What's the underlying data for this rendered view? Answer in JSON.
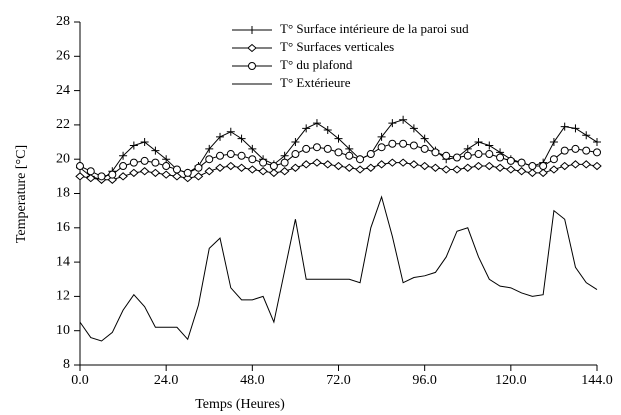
{
  "chart_data": {
    "type": "line",
    "x_label": "Temps (Heures)",
    "y_label": "Temperature [°C]",
    "x": [
      0,
      3,
      6,
      9,
      12,
      15,
      18,
      21,
      24,
      27,
      30,
      33,
      36,
      39,
      42,
      45,
      48,
      51,
      54,
      57,
      60,
      63,
      66,
      69,
      72,
      75,
      78,
      81,
      84,
      87,
      90,
      93,
      96,
      99,
      102,
      105,
      108,
      111,
      114,
      117,
      120,
      123,
      126,
      129,
      132,
      135,
      138,
      141,
      144
    ],
    "series": [
      {
        "name": "T° Surface intérieure de la paroi sud",
        "color": "#000000",
        "marker": "plus",
        "values": [
          19.5,
          19.0,
          18.8,
          19.3,
          20.2,
          20.8,
          21.0,
          20.5,
          20.0,
          19.4,
          19.2,
          19.6,
          20.6,
          21.3,
          21.6,
          21.2,
          20.6,
          20.0,
          19.7,
          20.2,
          21.0,
          21.8,
          22.1,
          21.7,
          21.2,
          20.6,
          20.0,
          20.3,
          21.3,
          22.1,
          22.3,
          21.8,
          21.2,
          20.5,
          20.0,
          20.1,
          20.6,
          21.0,
          20.8,
          20.4,
          20.0,
          19.8,
          19.6,
          19.8,
          21.0,
          21.9,
          21.8,
          21.4,
          21.0
        ]
      },
      {
        "name": "T° Surfaces verticales",
        "color": "#000000",
        "marker": "diamond",
        "values": [
          19.0,
          18.9,
          18.8,
          18.8,
          19.0,
          19.2,
          19.3,
          19.2,
          19.1,
          19.0,
          18.9,
          19.0,
          19.3,
          19.5,
          19.6,
          19.5,
          19.4,
          19.3,
          19.2,
          19.3,
          19.5,
          19.7,
          19.8,
          19.7,
          19.6,
          19.5,
          19.4,
          19.5,
          19.7,
          19.8,
          19.8,
          19.7,
          19.6,
          19.5,
          19.4,
          19.4,
          19.5,
          19.6,
          19.6,
          19.5,
          19.4,
          19.3,
          19.2,
          19.2,
          19.4,
          19.6,
          19.7,
          19.7,
          19.6
        ]
      },
      {
        "name": "T° du plafond",
        "color": "#000000",
        "marker": "circle",
        "values": [
          19.6,
          19.3,
          19.0,
          19.1,
          19.6,
          19.8,
          19.9,
          19.8,
          19.6,
          19.4,
          19.2,
          19.5,
          20.0,
          20.2,
          20.3,
          20.2,
          20.0,
          19.8,
          19.6,
          19.8,
          20.3,
          20.6,
          20.7,
          20.6,
          20.4,
          20.2,
          20.0,
          20.3,
          20.7,
          20.9,
          20.9,
          20.8,
          20.6,
          20.4,
          20.2,
          20.1,
          20.2,
          20.3,
          20.3,
          20.1,
          19.9,
          19.8,
          19.6,
          19.6,
          20.0,
          20.5,
          20.6,
          20.5,
          20.4
        ]
      },
      {
        "name": "T° Extérieure",
        "color": "#000000",
        "marker": "none",
        "values": [
          10.5,
          9.6,
          9.4,
          9.9,
          11.2,
          12.1,
          11.4,
          10.2,
          10.2,
          10.2,
          9.5,
          11.5,
          14.8,
          15.4,
          12.5,
          11.8,
          11.8,
          12.0,
          10.5,
          13.5,
          16.5,
          13.0,
          13.0,
          13.0,
          13.0,
          13.0,
          12.8,
          16.0,
          17.8,
          15.5,
          12.8,
          13.1,
          13.2,
          13.4,
          14.3,
          15.8,
          16.0,
          14.3,
          13.0,
          12.6,
          12.5,
          12.2,
          12.0,
          12.1,
          17.0,
          16.5,
          13.7,
          12.8,
          12.4
        ]
      }
    ],
    "xlim": [
      0,
      144
    ],
    "xticks": [
      {
        "value": 0,
        "label": "0.0"
      },
      {
        "value": 24,
        "label": "24.0"
      },
      {
        "value": 48,
        "label": "48.0"
      },
      {
        "value": 72,
        "label": "72.0"
      },
      {
        "value": 96,
        "label": "96.0"
      },
      {
        "value": 120,
        "label": "120.0"
      },
      {
        "value": 144,
        "label": "144.0"
      }
    ],
    "ylim": [
      8,
      28
    ],
    "yticks": [
      8,
      10,
      12,
      14,
      16,
      18,
      20,
      22,
      24,
      26,
      28
    ],
    "grid": false
  }
}
